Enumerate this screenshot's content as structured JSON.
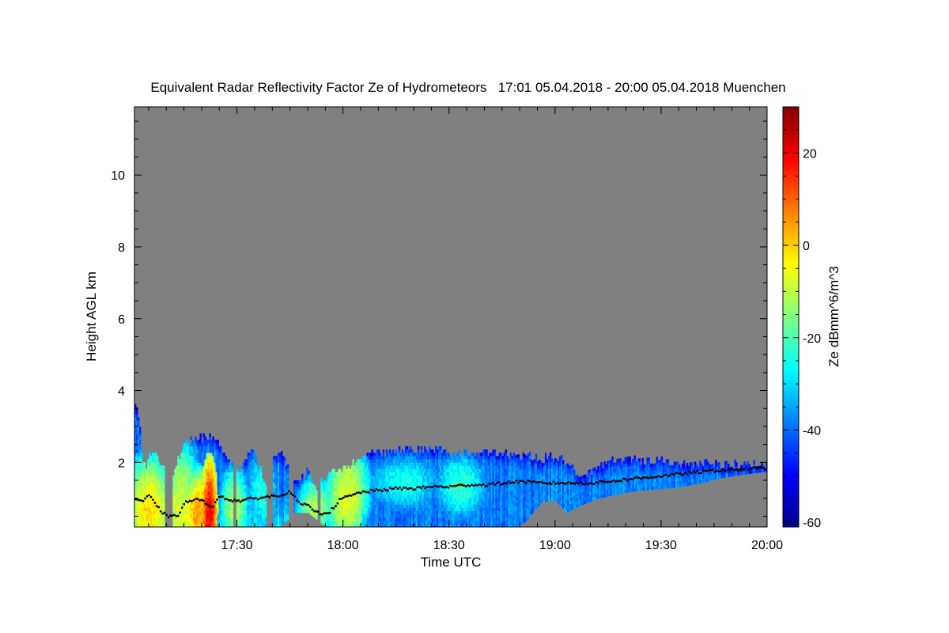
{
  "chart_data": {
    "type": "heatmap",
    "title": "Equivalent Radar Reflectivity Factor Ze of Hydrometeors   17:01 05.04.2018 - 20:00 05.04.2018 Muenchen",
    "xlabel": "Time UTC",
    "ylabel": "Height AGL km",
    "colorbar_label": "Ze dBmm^6/m^3",
    "x_range_minutes": [
      1021,
      1200
    ],
    "x_ticks": [
      {
        "label": "17:30",
        "minute": 1050
      },
      {
        "label": "18:00",
        "minute": 1080
      },
      {
        "label": "18:30",
        "minute": 1110
      },
      {
        "label": "19:00",
        "minute": 1140
      },
      {
        "label": "19:30",
        "minute": 1170
      },
      {
        "label": "20:00",
        "minute": 1200
      }
    ],
    "y_range_km": [
      0.2,
      11.9
    ],
    "y_ticks": [
      2,
      4,
      6,
      8,
      10
    ],
    "colorbar_range_dbz": [
      -61,
      30
    ],
    "colorbar_ticks": [
      -60,
      -40,
      -20,
      0,
      20
    ],
    "background_color": "#808080",
    "colormap": [
      "#00008f",
      "#0000ff",
      "#0080ff",
      "#00ffff",
      "#80ff80",
      "#ffff00",
      "#ff8000",
      "#ff0000",
      "#800000"
    ],
    "cloud_top_km": [
      [
        1021,
        3.5
      ],
      [
        1022,
        3.3
      ],
      [
        1023,
        2.1
      ],
      [
        1024,
        1.8
      ],
      [
        1025,
        2.2
      ],
      [
        1027,
        2.1
      ],
      [
        1029,
        1.9
      ],
      [
        1031,
        1.2
      ],
      [
        1033,
        2.0
      ],
      [
        1035,
        2.5
      ],
      [
        1038,
        2.6
      ],
      [
        1042,
        2.7
      ],
      [
        1044,
        2.5
      ],
      [
        1046,
        2.3
      ],
      [
        1048,
        1.9
      ],
      [
        1050,
        1.7
      ],
      [
        1052,
        2.0
      ],
      [
        1054,
        2.3
      ],
      [
        1056,
        1.9
      ],
      [
        1058,
        1.3
      ],
      [
        1060,
        2.2
      ],
      [
        1063,
        2.2
      ],
      [
        1065,
        1.6
      ],
      [
        1068,
        1.5
      ],
      [
        1070,
        1.8
      ],
      [
        1072,
        1.2
      ],
      [
        1074,
        1.5
      ],
      [
        1077,
        1.7
      ],
      [
        1080,
        1.8
      ],
      [
        1083,
        1.9
      ],
      [
        1086,
        2.1
      ],
      [
        1088,
        2.2
      ],
      [
        1090,
        2.2
      ],
      [
        1093,
        2.3
      ],
      [
        1097,
        2.3
      ],
      [
        1102,
        2.3
      ],
      [
        1107,
        2.3
      ],
      [
        1112,
        2.2
      ],
      [
        1117,
        2.25
      ],
      [
        1122,
        2.25
      ],
      [
        1126,
        2.2
      ],
      [
        1129,
        2.1
      ],
      [
        1132,
        2.2
      ],
      [
        1135,
        2.0
      ],
      [
        1138,
        2.1
      ],
      [
        1141,
        2.1
      ],
      [
        1144,
        1.9
      ],
      [
        1146,
        1.65
      ],
      [
        1148,
        1.6
      ],
      [
        1150,
        1.7
      ],
      [
        1153,
        1.85
      ],
      [
        1156,
        2.0
      ],
      [
        1160,
        2.05
      ],
      [
        1164,
        2.0
      ],
      [
        1168,
        2.0
      ],
      [
        1172,
        1.95
      ],
      [
        1176,
        1.95
      ],
      [
        1180,
        1.9
      ],
      [
        1184,
        1.9
      ],
      [
        1188,
        1.9
      ],
      [
        1192,
        1.9
      ],
      [
        1195,
        1.9
      ],
      [
        1198,
        1.85
      ],
      [
        1200,
        1.85
      ]
    ],
    "cloud_base_km": [
      [
        1021,
        0.2
      ],
      [
        1040,
        0.2
      ],
      [
        1062,
        0.2
      ],
      [
        1066,
        0.6
      ],
      [
        1070,
        0.6
      ],
      [
        1075,
        0.2
      ],
      [
        1100,
        0.2
      ],
      [
        1115,
        0.2
      ],
      [
        1128,
        0.2
      ],
      [
        1131,
        0.3
      ],
      [
        1136,
        0.9
      ],
      [
        1140,
        0.95
      ],
      [
        1143,
        0.6
      ],
      [
        1147,
        0.8
      ],
      [
        1152,
        1.0
      ],
      [
        1157,
        1.1
      ],
      [
        1162,
        1.2
      ],
      [
        1168,
        1.25
      ],
      [
        1174,
        1.3
      ],
      [
        1180,
        1.4
      ],
      [
        1186,
        1.55
      ],
      [
        1192,
        1.65
      ],
      [
        1196,
        1.7
      ],
      [
        1200,
        1.75
      ]
    ],
    "cores": [
      {
        "t": 1025,
        "h": 0.9,
        "w": 6,
        "hh": 1.2,
        "dbz": -5
      },
      {
        "t": 1034,
        "h": 1.0,
        "w": 5,
        "hh": 1.5,
        "dbz": -10
      },
      {
        "t": 1039,
        "h": 0.7,
        "w": 4,
        "hh": 1.0,
        "dbz": 0
      },
      {
        "t": 1042,
        "h": 0.8,
        "w": 2,
        "hh": 1.2,
        "dbz": 15
      },
      {
        "t": 1049,
        "h": 0.9,
        "w": 4,
        "hh": 1.0,
        "dbz": -15
      },
      {
        "t": 1057,
        "h": 1.3,
        "w": 5,
        "hh": 1.2,
        "dbz": -25
      },
      {
        "t": 1072,
        "h": 0.8,
        "w": 5,
        "hh": 0.8,
        "dbz": -15
      },
      {
        "t": 1081,
        "h": 1.2,
        "w": 6,
        "hh": 1.2,
        "dbz": -8
      },
      {
        "t": 1097,
        "h": 1.4,
        "w": 12,
        "hh": 0.9,
        "dbz": -25
      },
      {
        "t": 1113,
        "h": 1.3,
        "w": 8,
        "hh": 1.0,
        "dbz": -22
      }
    ],
    "cloud_base_line_km": [
      [
        1021,
        1.0
      ],
      [
        1023,
        0.95
      ],
      [
        1025,
        1.1
      ],
      [
        1027,
        0.8
      ],
      [
        1029,
        0.6
      ],
      [
        1031,
        0.5
      ],
      [
        1033,
        0.55
      ],
      [
        1035,
        0.9
      ],
      [
        1038,
        1.0
      ],
      [
        1041,
        0.9
      ],
      [
        1043,
        0.8
      ],
      [
        1045,
        1.1
      ],
      [
        1047,
        1.0
      ],
      [
        1050,
        0.95
      ],
      [
        1053,
        1.0
      ],
      [
        1057,
        1.05
      ],
      [
        1061,
        1.1
      ],
      [
        1065,
        1.2
      ],
      [
        1067,
        0.9
      ],
      [
        1070,
        0.8
      ],
      [
        1073,
        0.6
      ],
      [
        1076,
        0.65
      ],
      [
        1079,
        1.0
      ],
      [
        1082,
        1.1
      ],
      [
        1085,
        1.2
      ],
      [
        1090,
        1.25
      ],
      [
        1095,
        1.3
      ],
      [
        1100,
        1.3
      ],
      [
        1105,
        1.35
      ],
      [
        1110,
        1.35
      ],
      [
        1115,
        1.4
      ],
      [
        1120,
        1.4
      ],
      [
        1125,
        1.45
      ],
      [
        1130,
        1.5
      ],
      [
        1135,
        1.45
      ],
      [
        1140,
        1.45
      ],
      [
        1145,
        1.45
      ],
      [
        1150,
        1.45
      ],
      [
        1155,
        1.5
      ],
      [
        1160,
        1.55
      ],
      [
        1165,
        1.6
      ],
      [
        1170,
        1.65
      ],
      [
        1175,
        1.7
      ],
      [
        1180,
        1.75
      ],
      [
        1185,
        1.8
      ],
      [
        1190,
        1.82
      ],
      [
        1195,
        1.85
      ],
      [
        1200,
        1.88
      ]
    ]
  }
}
